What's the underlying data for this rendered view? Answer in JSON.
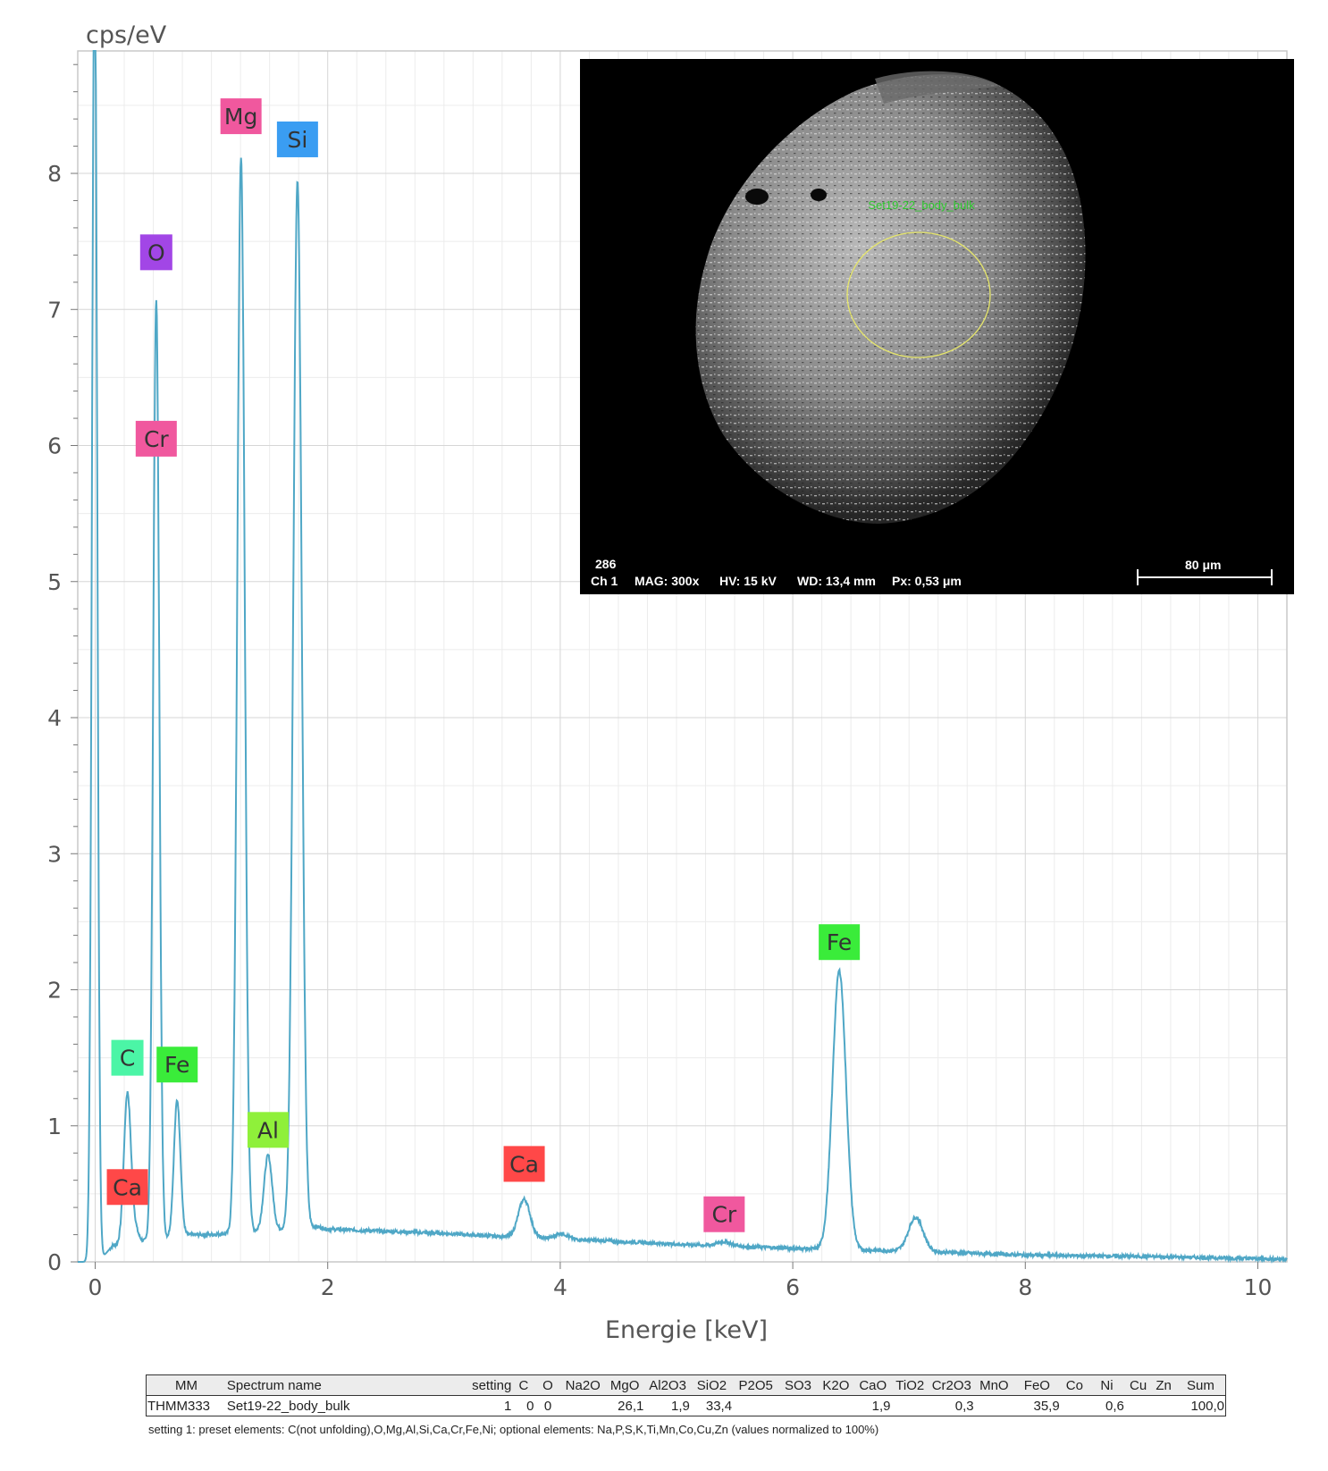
{
  "chart_data": {
    "type": "line",
    "ylabel": "cps/eV",
    "xlabel": "Energie [keV]",
    "xlim": [
      -0.15,
      10.25
    ],
    "ylim": [
      0,
      8.9
    ],
    "x_ticks": [
      0,
      2,
      4,
      6,
      8,
      10
    ],
    "y_ticks": [
      0,
      1,
      2,
      3,
      4,
      5,
      6,
      7,
      8
    ],
    "grid": true,
    "line_color": "#4fa7c6",
    "background": [
      [
        0.0,
        0.0
      ],
      [
        0.08,
        0.05
      ],
      [
        0.15,
        0.12
      ],
      [
        0.4,
        0.15
      ],
      [
        0.8,
        0.2
      ],
      [
        1.0,
        0.2
      ],
      [
        1.9,
        0.26
      ],
      [
        2.0,
        0.24
      ],
      [
        3.0,
        0.21
      ],
      [
        3.4,
        0.19
      ],
      [
        4.0,
        0.17
      ],
      [
        5.0,
        0.13
      ],
      [
        6.0,
        0.1
      ],
      [
        6.4,
        0.09
      ],
      [
        7.0,
        0.08
      ],
      [
        8.0,
        0.05
      ],
      [
        9.0,
        0.04
      ],
      [
        10.25,
        0.02
      ]
    ],
    "peaks": [
      {
        "x": 0.277,
        "height": 1.1,
        "width": 0.03
      },
      {
        "x": 0.34,
        "height": 0.1,
        "width": 0.03
      },
      {
        "x": 0.525,
        "height": 6.9,
        "width": 0.026
      },
      {
        "x": 0.705,
        "height": 1.0,
        "width": 0.028
      },
      {
        "x": 1.254,
        "height": 7.9,
        "width": 0.032
      },
      {
        "x": 1.487,
        "height": 0.55,
        "width": 0.035
      },
      {
        "x": 1.74,
        "height": 7.7,
        "width": 0.036
      },
      {
        "x": 3.69,
        "height": 0.28,
        "width": 0.05
      },
      {
        "x": 4.01,
        "height": 0.04,
        "width": 0.05
      },
      {
        "x": 5.41,
        "height": 0.03,
        "width": 0.06
      },
      {
        "x": 6.4,
        "height": 2.05,
        "width": 0.058
      },
      {
        "x": 7.058,
        "height": 0.25,
        "width": 0.062
      }
    ],
    "noise_peak": {
      "x": -0.005,
      "height": 9.8,
      "width": 0.022
    },
    "peak_labels": [
      {
        "text": "Mg",
        "x": 1.254,
        "y": 8.42,
        "color": "#f0589e"
      },
      {
        "text": "Si",
        "x": 1.74,
        "y": 8.25,
        "color": "#3a9df2"
      },
      {
        "text": "O",
        "x": 0.525,
        "y": 7.42,
        "color": "#a246e6"
      },
      {
        "text": "Cr",
        "x": 0.525,
        "y": 6.05,
        "color": "#f0589e"
      },
      {
        "text": "C",
        "x": 0.277,
        "y": 1.5,
        "color": "#4bf5a6"
      },
      {
        "text": "Fe",
        "x": 0.705,
        "y": 1.45,
        "color": "#3aec3a"
      },
      {
        "text": "Al",
        "x": 1.487,
        "y": 0.97,
        "color": "#8ff03a"
      },
      {
        "text": "Ca",
        "x": 0.277,
        "y": 0.55,
        "color": "#ff4848"
      },
      {
        "text": "Ca",
        "x": 3.69,
        "y": 0.72,
        "color": "#ff4848"
      },
      {
        "text": "Cr",
        "x": 5.41,
        "y": 0.35,
        "color": "#f0589e"
      },
      {
        "text": "Fe",
        "x": 6.4,
        "y": 2.35,
        "color": "#3aec3a"
      }
    ]
  },
  "inset": {
    "frame_number": "286",
    "channel": "Ch 1",
    "mag": "MAG: 300x",
    "hv": "HV: 15 kV",
    "wd": "WD: 13,4 mm",
    "px": "Px: 0,53 μm",
    "scale_bar": "80 μm",
    "region_label": "Set19-22_body_bulk"
  },
  "table": {
    "headers": [
      "MM",
      "Spectrum name",
      "setting",
      "C",
      "O",
      "Na2O",
      "MgO",
      "Al2O3",
      "SiO2",
      "P2O5",
      "SO3",
      "K2O",
      "CaO",
      "TiO2",
      "Cr2O3",
      "MnO",
      "FeO",
      "Co",
      "Ni",
      "Cu",
      "Zn",
      "Sum"
    ],
    "row": [
      "THMM333",
      "Set19-22_body_bulk",
      "1",
      "0",
      "0",
      "",
      "26,1",
      "1,9",
      "33,4",
      "",
      "",
      "",
      "1,9",
      "",
      "0,3",
      "",
      "35,9",
      "",
      "0,6",
      "",
      "",
      "100,0"
    ]
  },
  "footnote": "setting 1: preset elements: C(not unfolding),O,Mg,Al,Si,Ca,Cr,Fe,Ni; optional elements: Na,P,S,K,Ti,Mn,Co,Cu,Zn (values normalized to 100%)"
}
